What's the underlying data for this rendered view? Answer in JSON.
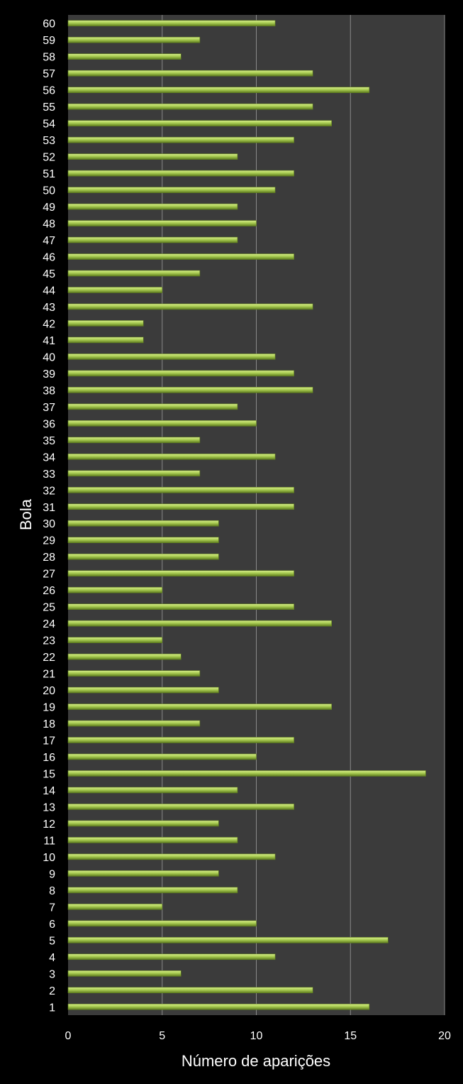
{
  "chart_data": {
    "type": "bar",
    "orientation": "horizontal",
    "title": "",
    "xlabel": "Número de aparições",
    "ylabel": "Bola",
    "xlim": [
      0,
      20
    ],
    "xticks": [
      0,
      5,
      10,
      15,
      20
    ],
    "grid": true,
    "colors": {
      "background": "#000000",
      "plot_area": "#3b3b3b",
      "gridline": "#8a8a8a",
      "bar_light": "#d8ee8c",
      "bar_mid": "#a9cc52",
      "bar_dark": "#5f7d1f",
      "text": "#ffffff"
    },
    "categories": [
      "1",
      "2",
      "3",
      "4",
      "5",
      "6",
      "7",
      "8",
      "9",
      "10",
      "11",
      "12",
      "13",
      "14",
      "15",
      "16",
      "17",
      "18",
      "19",
      "20",
      "21",
      "22",
      "23",
      "24",
      "25",
      "26",
      "27",
      "28",
      "29",
      "30",
      "31",
      "32",
      "33",
      "34",
      "35",
      "36",
      "37",
      "38",
      "39",
      "40",
      "41",
      "42",
      "43",
      "44",
      "45",
      "46",
      "47",
      "48",
      "49",
      "50",
      "51",
      "52",
      "53",
      "54",
      "55",
      "56",
      "57",
      "58",
      "59",
      "60"
    ],
    "values": [
      16,
      13,
      6,
      11,
      17,
      10,
      5,
      9,
      8,
      11,
      9,
      8,
      12,
      9,
      19,
      10,
      12,
      7,
      14,
      8,
      7,
      6,
      5,
      14,
      12,
      5,
      12,
      8,
      8,
      8,
      12,
      12,
      7,
      11,
      7,
      10,
      9,
      13,
      12,
      11,
      4,
      4,
      13,
      5,
      7,
      12,
      9,
      10,
      9,
      11,
      12,
      9,
      12,
      14,
      13,
      16,
      13,
      6,
      7,
      11
    ]
  }
}
